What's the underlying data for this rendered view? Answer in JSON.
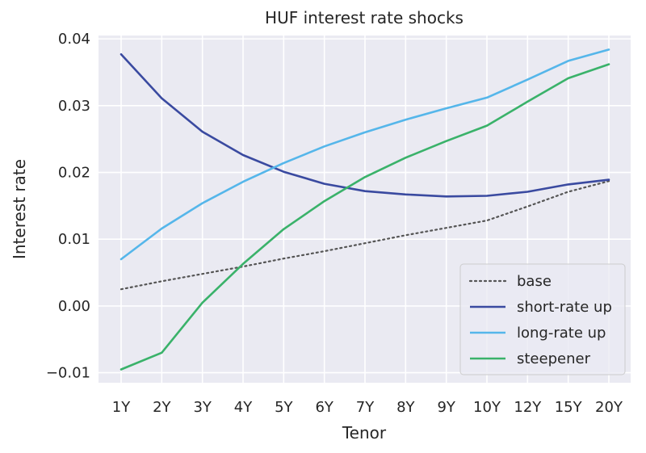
{
  "chart_data": {
    "type": "line",
    "title": "HUF interest rate shocks",
    "xlabel": "Tenor",
    "ylabel": "Interest rate",
    "categories": [
      "1Y",
      "2Y",
      "3Y",
      "4Y",
      "5Y",
      "6Y",
      "7Y",
      "8Y",
      "9Y",
      "10Y",
      "12Y",
      "15Y",
      "20Y"
    ],
    "y_ticks": [
      "−0.01",
      "0.00",
      "0.01",
      "0.02",
      "0.03",
      "0.04"
    ],
    "y_tick_values": [
      -0.01,
      0.0,
      0.01,
      0.02,
      0.03,
      0.04
    ],
    "ylim": [
      -0.0115,
      0.0405
    ],
    "grid": true,
    "legend_position": "lower-right",
    "series": [
      {
        "name": "base",
        "color": "#555555",
        "style": "dotted",
        "values": [
          0.0025,
          0.0037,
          0.0048,
          0.0059,
          0.0071,
          0.0082,
          0.0094,
          0.0106,
          0.0117,
          0.0128,
          0.0149,
          0.0171,
          0.0187
        ]
      },
      {
        "name": "short-rate up",
        "color": "#3a4aa0",
        "style": "solid",
        "values": [
          0.0377,
          0.0311,
          0.0261,
          0.0226,
          0.0201,
          0.0183,
          0.0172,
          0.0167,
          0.0164,
          0.0165,
          0.0171,
          0.0182,
          0.0189
        ]
      },
      {
        "name": "long-rate up",
        "color": "#55b6ea",
        "style": "solid",
        "values": [
          0.007,
          0.0116,
          0.0154,
          0.0186,
          0.0214,
          0.0239,
          0.026,
          0.0279,
          0.0296,
          0.0312,
          0.0339,
          0.0367,
          0.0384
        ]
      },
      {
        "name": "steepener",
        "color": "#3ab26a",
        "style": "solid",
        "values": [
          -0.0095,
          -0.007,
          0.0005,
          0.0063,
          0.0115,
          0.0157,
          0.0193,
          0.0222,
          0.0247,
          0.027,
          0.0306,
          0.0341,
          0.0362
        ]
      }
    ]
  }
}
